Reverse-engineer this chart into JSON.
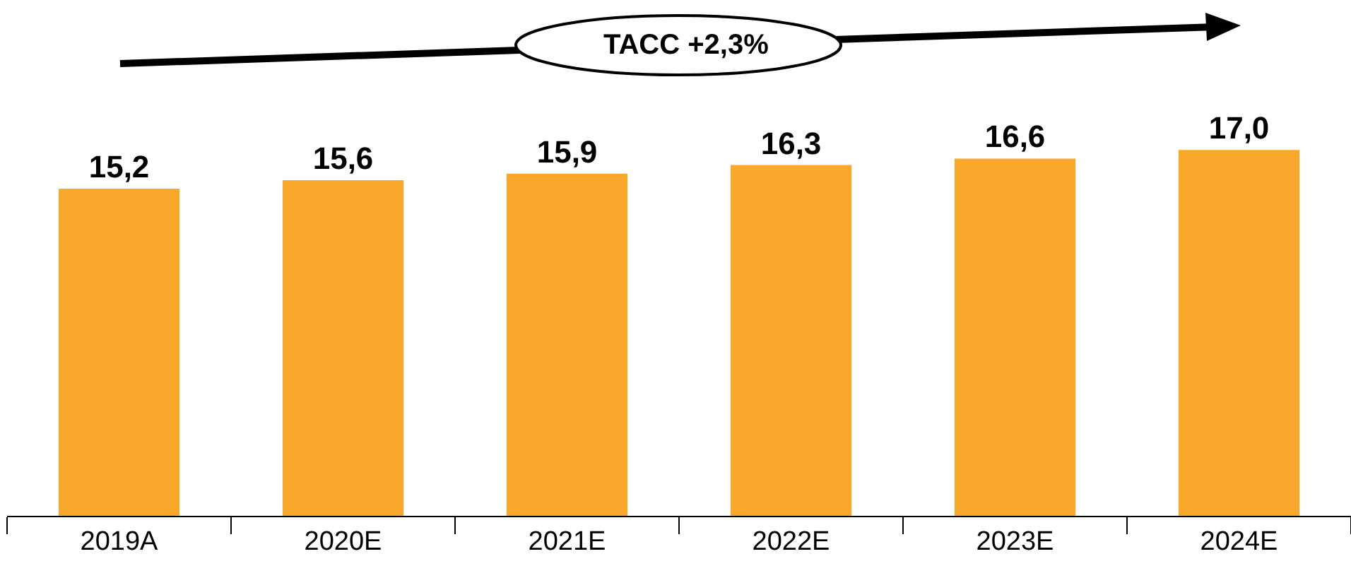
{
  "chart_data": {
    "type": "bar",
    "categories": [
      "2019A",
      "2020E",
      "2021E",
      "2022E",
      "2023E",
      "2024E"
    ],
    "values": [
      15.2,
      15.6,
      15.9,
      16.3,
      16.6,
      17.0
    ],
    "value_labels": [
      "15,2",
      "15,6",
      "15,9",
      "16,3",
      "16,6",
      "17,0"
    ],
    "color": "#f9a82b",
    "grid": false,
    "legend": false,
    "annotations": [
      "TACC +2,3%"
    ]
  }
}
